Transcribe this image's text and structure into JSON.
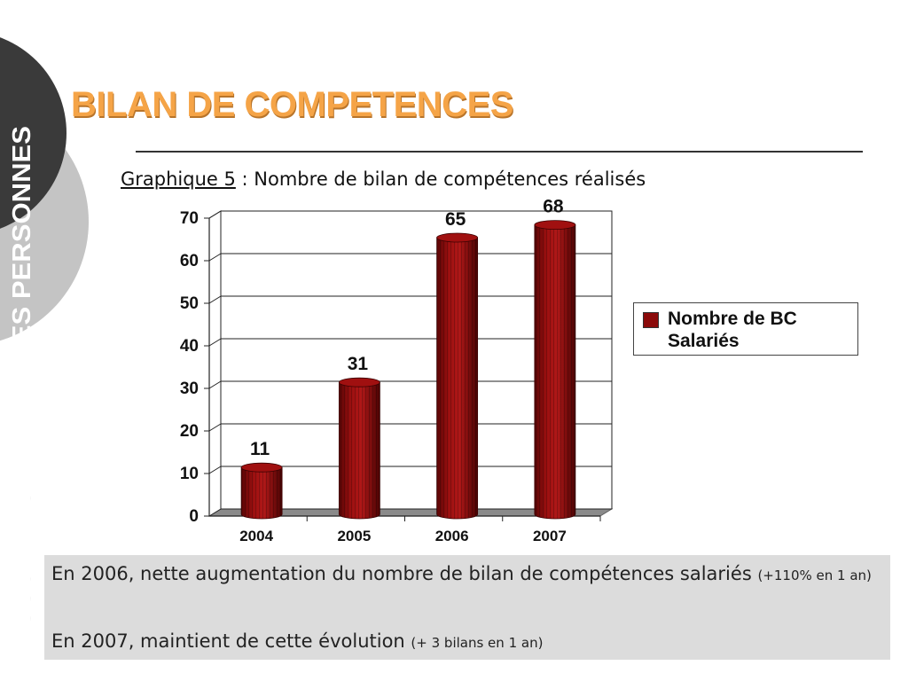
{
  "sidebar": {
    "text": "ACCOMPAGNEMENT DES PERSONNES"
  },
  "header": {
    "title": "BILAN DE COMPETENCES"
  },
  "caption": {
    "reference": "Graphique 5",
    "separator": " : ",
    "text": "Nombre de bilan de compétences réalisés"
  },
  "chart_data": {
    "type": "bar",
    "categories": [
      "2004",
      "2005",
      "2006",
      "2007"
    ],
    "series": [
      {
        "name": "Nombre de BC Salariés",
        "values": [
          11,
          31,
          65,
          68
        ]
      }
    ],
    "data_labels": [
      "11",
      "31",
      "65",
      "68"
    ],
    "ylim": [
      0,
      70
    ],
    "yticks": [
      0,
      10,
      20,
      30,
      40,
      50,
      60,
      70
    ],
    "grid": true,
    "legend_position": "right",
    "bar_color": "#8b0a0a",
    "style": "3d-cylinder"
  },
  "summary": {
    "line1_main": "En 2006, nette augmentation du nombre de bilan de compétences salariés ",
    "line1_note": "(+110% en 1 an)",
    "line2_main": "En 2007, maintient de cette évolution ",
    "line2_note": "(+ 3 bilans en 1 an)"
  },
  "colors": {
    "title": "#f5a447",
    "bars": "#8b0a0a",
    "sidebar_dark": "#3a3a3a",
    "sidebar_light": "#c4c4c4",
    "summary_bg": "#dcdcdc"
  }
}
